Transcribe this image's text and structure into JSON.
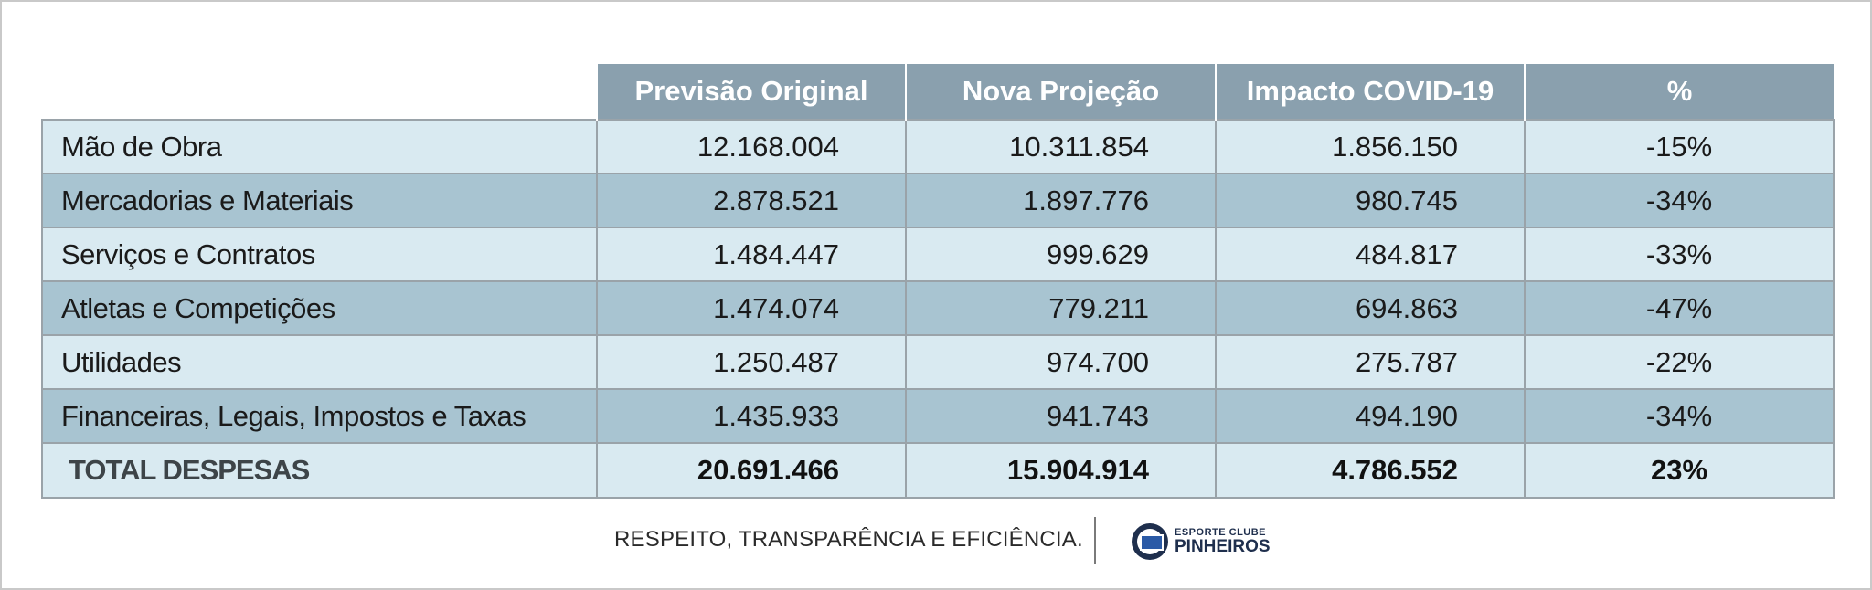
{
  "table": {
    "headers": [
      "Previsão Original",
      "Nova Projeção",
      "Impacto COVID-19",
      "%"
    ],
    "rows": [
      {
        "label": "Mão de Obra",
        "original": "12.168.004",
        "nova": "10.311.854",
        "impacto": "1.856.150",
        "pct": "-15%"
      },
      {
        "label": "Mercadorias e Materiais",
        "original": "2.878.521",
        "nova": "1.897.776",
        "impacto": "980.745",
        "pct": "-34%"
      },
      {
        "label": "Serviços e Contratos",
        "original": "1.484.447",
        "nova": "999.629",
        "impacto": "484.817",
        "pct": "-33%"
      },
      {
        "label": "Atletas e Competições",
        "original": "1.474.074",
        "nova": "779.211",
        "impacto": "694.863",
        "pct": "-47%"
      },
      {
        "label": "Utilidades",
        "original": "1.250.487",
        "nova": "974.700",
        "impacto": "275.787",
        "pct": "-22%"
      },
      {
        "label": "Financeiras, Legais, Impostos e Taxas",
        "original": "1.435.933",
        "nova": "941.743",
        "impacto": "494.190",
        "pct": "-34%"
      }
    ],
    "total": {
      "label": "TOTAL DESPESAS",
      "original": "20.691.466",
      "nova": "15.904.914",
      "impacto": "4.786.552",
      "pct": "23%"
    }
  },
  "footer": {
    "motto": "RESPEITO, TRANSPARÊNCIA E EFICIÊNCIA.",
    "logo_line1": "ESPORTE CLUBE",
    "logo_line2": "PINHEIROS",
    "logo_icon": "club-crest-icon"
  },
  "colors": {
    "header_bg": "#8aa0ae",
    "row_light": "#d9eaf1",
    "row_dark": "#a8c4d1"
  }
}
